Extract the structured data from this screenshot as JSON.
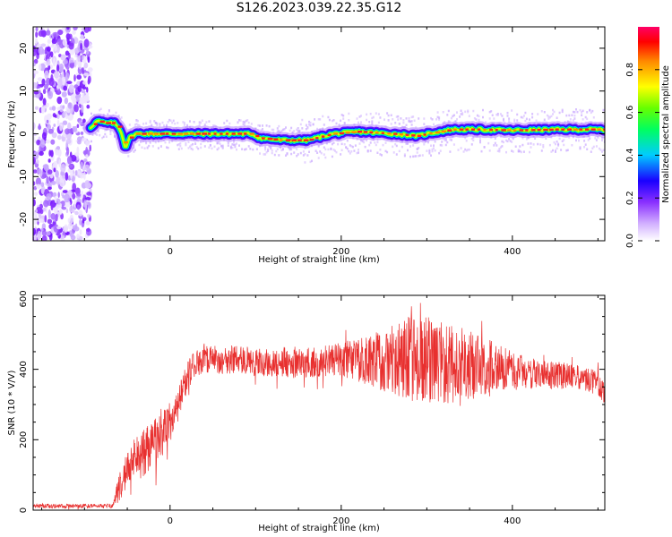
{
  "title": "S126.2023.039.22.35.G12",
  "chart_data": [
    {
      "type": "heatmap",
      "name": "spectrogram",
      "xlabel": "Height of straight line (km)",
      "ylabel": "Frequency (Hz)",
      "xlim": [
        -160,
        508
      ],
      "ylim": [
        -25,
        25
      ],
      "xticks": [
        0,
        200,
        400
      ],
      "xtick_labels": [
        "0",
        "200",
        "400"
      ],
      "yticks": [
        -20,
        -10,
        0,
        10,
        20
      ],
      "ytick_labels": [
        "-20",
        "-10",
        "0",
        "10",
        "20"
      ],
      "colorbar": {
        "label": "Normalized spectral amplitude",
        "range": [
          0,
          1
        ],
        "ticks": [
          0.0,
          0.2,
          0.4,
          0.6,
          0.8
        ],
        "tick_labels": [
          "0.0",
          "0.2",
          "0.4",
          "0.6",
          "0.8"
        ],
        "colors": [
          "#ffffff",
          "#b070ff",
          "#6a00ff",
          "#0000ff",
          "#00ccff",
          "#00ff40",
          "#ffff00",
          "#ff8800",
          "#ff0000",
          "#ff0066"
        ]
      },
      "noise_region": {
        "x": [
          -160,
          -93
        ],
        "description": "broadband noise"
      },
      "ridge": {
        "x": [
          -93,
          -85,
          -75,
          -65,
          -58,
          -52,
          -48,
          -40,
          -20,
          0,
          50,
          95,
          105,
          130,
          160,
          190,
          220,
          260,
          290,
          300,
          330,
          360,
          400,
          450,
          508
        ],
        "y": [
          1.5,
          3.0,
          2.5,
          2.5,
          1.0,
          -3.5,
          -1.0,
          0.0,
          0.0,
          0.0,
          0.0,
          0.0,
          -1.0,
          -1.5,
          -1.5,
          0.0,
          0.5,
          0.0,
          -0.5,
          0.0,
          1.0,
          1.0,
          0.8,
          1.0,
          1.0
        ]
      },
      "grid": false
    },
    {
      "type": "line",
      "name": "snr",
      "xlabel": "Height of straight line (km)",
      "ylabel": "SNR (10 * V/V)",
      "xlim": [
        -160,
        508
      ],
      "ylim": [
        0,
        610
      ],
      "xticks": [
        0,
        200,
        400
      ],
      "xtick_labels": [
        "0",
        "200",
        "400"
      ],
      "yticks": [
        0,
        200,
        400,
        600
      ],
      "ytick_labels": [
        "0",
        "200",
        "400",
        "600"
      ],
      "color": "#e8302f",
      "grid": false,
      "series": [
        {
          "x": [
            -160,
            -140,
            -120,
            -100,
            -80,
            -67,
            -60,
            -50,
            -40,
            -30,
            -20,
            -10,
            0,
            10,
            20,
            30,
            40,
            60,
            80,
            100,
            120,
            140,
            160,
            180,
            200,
            220,
            240,
            260,
            280,
            300,
            320,
            340,
            360,
            380,
            400,
            420,
            440,
            460,
            480,
            500,
            508
          ],
          "y": [
            12,
            12,
            12,
            12,
            12,
            12,
            60,
            120,
            150,
            160,
            190,
            220,
            250,
            300,
            380,
            420,
            430,
            425,
            430,
            420,
            415,
            415,
            420,
            425,
            430,
            425,
            425,
            430,
            430,
            420,
            415,
            410,
            410,
            405,
            395,
            390,
            385,
            380,
            375,
            360,
            330
          ],
          "noise_amplitude": [
            6,
            6,
            6,
            6,
            6,
            6,
            40,
            50,
            60,
            70,
            70,
            70,
            60,
            50,
            40,
            40,
            40,
            40,
            40,
            40,
            40,
            40,
            45,
            45,
            50,
            60,
            80,
            100,
            120,
            130,
            120,
            110,
            90,
            70,
            55,
            45,
            40,
            40,
            35,
            35,
            30
          ]
        }
      ]
    }
  ]
}
